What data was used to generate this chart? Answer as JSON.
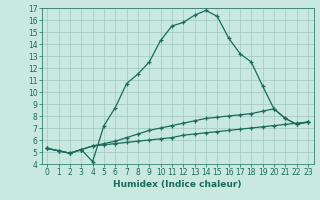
{
  "title": "",
  "xlabel": "Humidex (Indice chaleur)",
  "ylabel": "",
  "bg_color": "#c8e8e0",
  "grid_color": "#a0c8c0",
  "line_color": "#1a6b5a",
  "xlim": [
    -0.5,
    23.5
  ],
  "ylim": [
    4,
    17
  ],
  "yticks": [
    4,
    5,
    6,
    7,
    8,
    9,
    10,
    11,
    12,
    13,
    14,
    15,
    16,
    17
  ],
  "xticks": [
    0,
    1,
    2,
    3,
    4,
    5,
    6,
    7,
    8,
    9,
    10,
    11,
    12,
    13,
    14,
    15,
    16,
    17,
    18,
    19,
    20,
    21,
    22,
    23
  ],
  "line1_x": [
    0,
    1,
    2,
    3,
    4,
    5,
    6,
    7,
    8,
    9,
    10,
    11,
    12,
    13,
    14,
    15,
    16,
    17,
    18,
    19,
    20,
    21,
    22,
    23
  ],
  "line1_y": [
    5.3,
    5.1,
    4.9,
    5.2,
    4.2,
    7.2,
    8.7,
    10.7,
    11.5,
    12.5,
    14.3,
    15.5,
    15.8,
    16.4,
    16.8,
    16.3,
    14.5,
    13.2,
    12.5,
    10.5,
    8.6,
    7.8,
    7.3,
    7.5
  ],
  "line2_x": [
    0,
    1,
    2,
    3,
    4,
    5,
    6,
    7,
    8,
    9,
    10,
    11,
    12,
    13,
    14,
    15,
    16,
    17,
    18,
    19,
    20,
    21,
    22,
    23
  ],
  "line2_y": [
    5.3,
    5.1,
    4.9,
    5.2,
    5.5,
    5.7,
    5.9,
    6.2,
    6.5,
    6.8,
    7.0,
    7.2,
    7.4,
    7.6,
    7.8,
    7.9,
    8.0,
    8.1,
    8.2,
    8.4,
    8.6,
    7.8,
    7.3,
    7.5
  ],
  "line3_x": [
    0,
    1,
    2,
    3,
    4,
    5,
    6,
    7,
    8,
    9,
    10,
    11,
    12,
    13,
    14,
    15,
    16,
    17,
    18,
    19,
    20,
    21,
    22,
    23
  ],
  "line3_y": [
    5.3,
    5.1,
    4.9,
    5.2,
    5.5,
    5.6,
    5.7,
    5.8,
    5.9,
    6.0,
    6.1,
    6.2,
    6.4,
    6.5,
    6.6,
    6.7,
    6.8,
    6.9,
    7.0,
    7.1,
    7.2,
    7.3,
    7.4,
    7.5
  ],
  "tick_fontsize": 5.5,
  "xlabel_fontsize": 6.5
}
